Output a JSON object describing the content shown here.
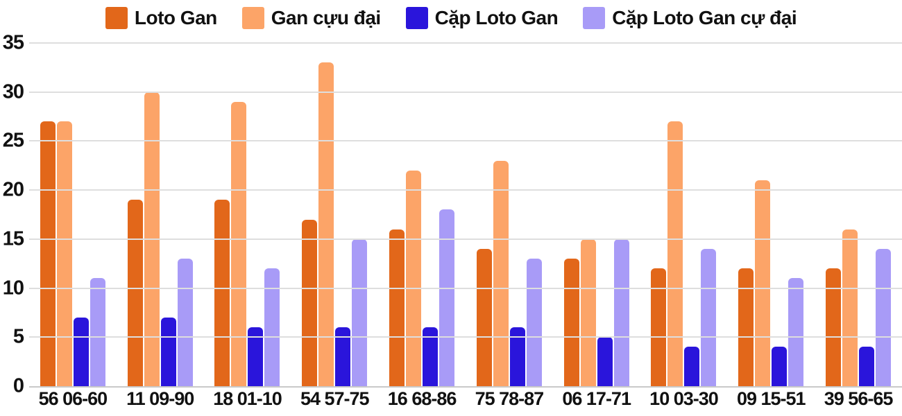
{
  "chart_data": {
    "type": "bar",
    "title": "",
    "categories": [
      "56 06-60",
      "11 09-90",
      "18 01-10",
      "54 57-75",
      "16 68-86",
      "75 78-87",
      "06 17-71",
      "10 03-30",
      "09 15-51",
      "39 56-65"
    ],
    "series": [
      {
        "name": "Loto Gan",
        "color": "#e2671a",
        "values": [
          27,
          19,
          19,
          17,
          16,
          14,
          13,
          12,
          12,
          12
        ]
      },
      {
        "name": "Gan cựu đại",
        "color": "#fca468",
        "values": [
          27,
          30,
          29,
          33,
          22,
          23,
          15,
          27,
          21,
          16
        ]
      },
      {
        "name": "Cặp Loto Gan",
        "color": "#2a15db",
        "values": [
          7,
          7,
          6,
          6,
          6,
          6,
          5,
          4,
          4,
          4
        ]
      },
      {
        "name": "Cặp Loto Gan cự đại",
        "color": "#a89bf7",
        "values": [
          11,
          13,
          12,
          15,
          18,
          13,
          15,
          14,
          11,
          14
        ]
      }
    ],
    "ylim": [
      0,
      35
    ],
    "yticks": [
      0,
      5,
      10,
      15,
      20,
      25,
      30,
      35
    ],
    "grid": "horizontal",
    "legend_position": "top",
    "colors": {
      "background": "#ffffff",
      "text": "#111111",
      "gridline": "#dedede",
      "axis_line": "#c9c9c9"
    }
  }
}
